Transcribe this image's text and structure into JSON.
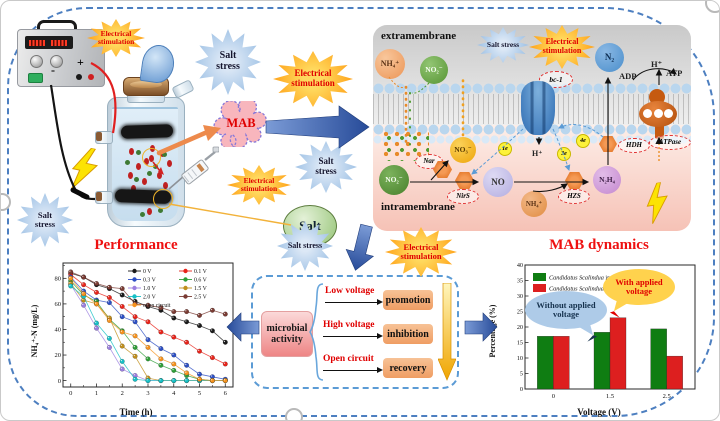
{
  "labels": {
    "electrical_stimulation": "Electrical stimulation",
    "salt_stress": "Salt stress",
    "mab": "MAB",
    "salt": "Salt",
    "plus": "+",
    "minus": "-"
  },
  "membrane": {
    "extramembrane": "extramembrane",
    "intramembrane": "intramembrane",
    "nh4_out": "NH₄⁺",
    "no2_out": "NO₂⁻",
    "n2": "N₂",
    "adp": "ADP",
    "hplus_top": "H⁺",
    "atp": "ATP",
    "bc1": "bc-1",
    "hplus_mid": "H⁺",
    "e1": "1e",
    "e3": "3e",
    "e4": "4e",
    "no2_in": "NO₂⁻",
    "nar": "Nar",
    "no3": "NO₃⁻",
    "nirs": "NirS",
    "no": "NO",
    "nh4_in": "NH₄⁺",
    "hzs": "HZS",
    "n2h4": "N₂H₄",
    "hdh": "HDH",
    "atpase": "ATPase"
  },
  "flow": {
    "microbial_activity": "microbial activity",
    "rows": [
      {
        "label": "Low voltage",
        "result": "promotion"
      },
      {
        "label": "High voltage",
        "result": "inhibition"
      },
      {
        "label": "Open circuit",
        "result": "recovery"
      }
    ]
  },
  "chart_data": [
    {
      "type": "line",
      "title": "Performance",
      "xlabel": "Time (h)",
      "ylabel": "NH₄⁺-N (mg/L)",
      "x": [
        0,
        0.5,
        1,
        1.5,
        2,
        2.5,
        3,
        3.5,
        4,
        4.5,
        5,
        5.5,
        6
      ],
      "xlim": [
        -0.3,
        6.3
      ],
      "ylim": [
        -5,
        92
      ],
      "xticks": [
        0,
        1,
        2,
        3,
        4,
        5,
        6
      ],
      "yticks": [
        0,
        20,
        40,
        60,
        80
      ],
      "grid": false,
      "legend_position": "top-right",
      "series": [
        {
          "name": "0 V",
          "color": "#1a1a1a",
          "values": [
            84,
            81,
            75,
            72,
            67,
            62,
            58,
            55,
            49,
            46,
            43,
            39,
            30
          ]
        },
        {
          "name": "0.1 V",
          "color": "#e8231a",
          "values": [
            83,
            75,
            69,
            65,
            58,
            50,
            46,
            38,
            34,
            30,
            23,
            18,
            13
          ]
        },
        {
          "name": "0.3 V",
          "color": "#2d4fc4",
          "values": [
            81,
            70,
            63,
            61,
            50,
            46,
            32,
            25,
            20,
            12,
            5,
            3,
            1
          ]
        },
        {
          "name": "0.6 V",
          "color": "#2e9e38",
          "values": [
            78,
            67,
            62,
            48,
            39,
            26,
            17,
            12,
            8,
            4,
            1,
            0,
            0
          ]
        },
        {
          "name": "1.0 V",
          "color": "#9b7fe0",
          "values": [
            75,
            59,
            41,
            26,
            9,
            4,
            0,
            0,
            0,
            0,
            0,
            0,
            0
          ]
        },
        {
          "name": "1.5 V",
          "color": "#c08f1c",
          "values": [
            76,
            63,
            60,
            49,
            27,
            19,
            2,
            0,
            0,
            0,
            0,
            0,
            0
          ]
        },
        {
          "name": "2.0 V",
          "color": "#17c0c6",
          "values": [
            74,
            66,
            45,
            33,
            15,
            1,
            0,
            0,
            0,
            0,
            0,
            0,
            0
          ]
        },
        {
          "name": "2.5 V",
          "color": "#7a3b33",
          "values": [
            85,
            81,
            76,
            73,
            72,
            60,
            59,
            57,
            54,
            54,
            51,
            55,
            52
          ]
        },
        {
          "name": "open circuit",
          "color": "#f5921e",
          "values": [
            80,
            68,
            60,
            47,
            38,
            35,
            26,
            17,
            13,
            6,
            1,
            0,
            0
          ]
        }
      ]
    },
    {
      "type": "bar",
      "title": "MAB dynamics",
      "xlabel": "Voltage (V)",
      "ylabel": "Percentage (%)",
      "categories": [
        "0",
        "1.5",
        "2.5"
      ],
      "ylim": [
        0,
        40
      ],
      "yticks": [
        0,
        5,
        10,
        15,
        20,
        25,
        30,
        35,
        40
      ],
      "grid": false,
      "legend_position": "top-left",
      "series": [
        {
          "name": "Candidatus Scalindua in R1",
          "name_italic": "Candidatus Scalindua",
          "name_rest": "in R1",
          "color": "#0f7d12",
          "values": [
            17.0,
            18.3,
            19.4
          ]
        },
        {
          "name": "Candidatus Scalindua in R2",
          "name_italic": "Candidatus Scalindua",
          "name_rest": "in R2",
          "color": "#dd1f1f",
          "values": [
            17.0,
            23.0,
            10.6
          ]
        }
      ],
      "annotations": [
        {
          "text": "Without applied voltage",
          "bubble_color": "#aecbe8",
          "points_to": "R1 bar at 1.5 V"
        },
        {
          "text": "With applied voltage",
          "bubble_color": "#ffd24d",
          "points_to": "R2 bar at 1.5 V"
        }
      ]
    }
  ]
}
